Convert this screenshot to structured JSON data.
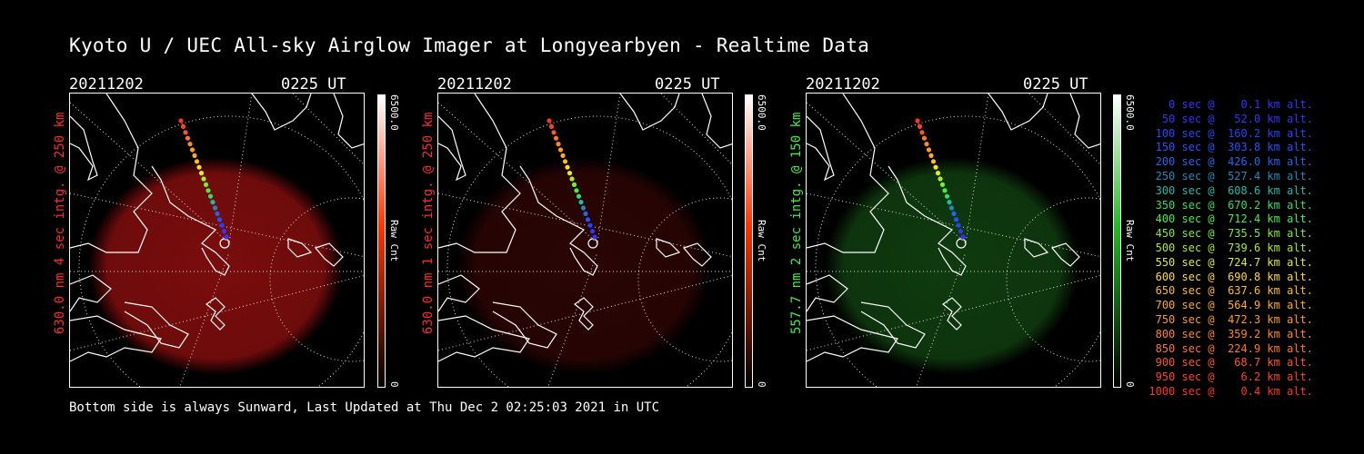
{
  "title": "Kyoto U / UEC All-sky Airglow Imager at Longyearbyen - Realtime Data",
  "footer": "Bottom side is always Sunward, Last Updated at Thu Dec  2 02:25:03 2021 in UTC",
  "panels": [
    {
      "date": "20211202",
      "time": "0225 UT",
      "side_label": "630.0 nm  4 sec intg. @ 250 km",
      "side_color": "#ff2a2a",
      "glow_color": "#7a0d0d",
      "cbar_max": "6500.0",
      "cbar_min": "0",
      "cbar_unit": "Raw Cnt",
      "cbar_color": "#ff3300"
    },
    {
      "date": "20211202",
      "time": "0225 UT",
      "side_label": "630.0 nm  1 sec intg. @ 250 km",
      "side_color": "#ff2a2a",
      "glow_color": "#2a0505",
      "cbar_max": "6500.0",
      "cbar_min": "0",
      "cbar_unit": "Raw Cnt",
      "cbar_color": "#ff3300"
    },
    {
      "date": "20211202",
      "time": "0225 UT",
      "side_label": "557.7 nm  2 sec intg. @ 150 km",
      "side_color": "#44ee44",
      "glow_color": "#0f3a0f",
      "cbar_max": "6500.0",
      "cbar_min": "0",
      "cbar_unit": "Raw Cnt",
      "cbar_color": "#22bb22"
    }
  ],
  "legend": [
    {
      "text": "   0 sec @    0.1 km alt.",
      "color": "#3333ff"
    },
    {
      "text": "  50 sec @   52.0 km alt.",
      "color": "#3333ff"
    },
    {
      "text": " 100 sec @  160.2 km alt.",
      "color": "#2244ff"
    },
    {
      "text": " 150 sec @  303.8 km alt.",
      "color": "#2255ff"
    },
    {
      "text": " 200 sec @  426.0 km alt.",
      "color": "#2266ee"
    },
    {
      "text": " 250 sec @  527.4 km alt.",
      "color": "#2288bb"
    },
    {
      "text": " 300 sec @  608.6 km alt.",
      "color": "#22bbaa"
    },
    {
      "text": " 350 sec @  670.2 km alt.",
      "color": "#33dd66"
    },
    {
      "text": " 400 sec @  712.4 km alt.",
      "color": "#44ee44"
    },
    {
      "text": " 450 sec @  735.5 km alt.",
      "color": "#77ee33"
    },
    {
      "text": " 500 sec @  739.6 km alt.",
      "color": "#aaee22"
    },
    {
      "text": " 550 sec @  724.7 km alt.",
      "color": "#ddee22"
    },
    {
      "text": " 600 sec @  690.8 km alt.",
      "color": "#ffdd22"
    },
    {
      "text": " 650 sec @  637.6 km alt.",
      "color": "#ffbb22"
    },
    {
      "text": " 700 sec @  564.9 km alt.",
      "color": "#ffaa22"
    },
    {
      "text": " 750 sec @  472.3 km alt.",
      "color": "#ff9922"
    },
    {
      "text": " 800 sec @  359.2 km alt.",
      "color": "#ff8822"
    },
    {
      "text": " 850 sec @  224.9 km alt.",
      "color": "#ff7722"
    },
    {
      "text": " 900 sec @   68.7 km alt.",
      "color": "#ff5522"
    },
    {
      "text": " 950 sec @    6.2 km alt.",
      "color": "#ff4422"
    },
    {
      "text": "1000 sec @    0.4 km alt.",
      "color": "#ff3322"
    }
  ]
}
